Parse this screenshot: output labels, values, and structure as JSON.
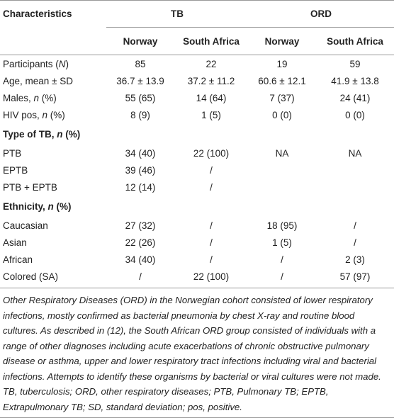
{
  "table": {
    "header": {
      "label": "Characteristics",
      "groups": [
        "TB",
        "ORD"
      ],
      "columns": [
        "Norway",
        "South Africa",
        "Norway",
        "South Africa"
      ]
    },
    "rows": [
      {
        "label": [
          "Participants (",
          "N",
          ")"
        ],
        "cells": [
          "85",
          "22",
          "19",
          "59"
        ]
      },
      {
        "label": [
          "Age, mean ± SD"
        ],
        "cells": [
          "36.7 ± 13.9",
          "37.2 ± 11.2",
          "60.6 ± 12.1",
          "41.9 ± 13.8"
        ]
      },
      {
        "label": [
          "Males, ",
          "n",
          " (%)"
        ],
        "cells": [
          "55 (65)",
          "14 (64)",
          "7 (37)",
          "24 (41)"
        ]
      },
      {
        "label": [
          "HIV pos, ",
          "n",
          " (%)"
        ],
        "cells": [
          "8 (9)",
          "1 (5)",
          "0 (0)",
          "0 (0)"
        ]
      },
      {
        "label": [
          "Type of TB, ",
          "n",
          " (%)"
        ]
      },
      {
        "label": [
          "PTB"
        ],
        "cells": [
          "34 (40)",
          "22 (100)",
          "NA",
          "NA"
        ]
      },
      {
        "label": [
          "EPTB"
        ],
        "cells": [
          "39 (46)",
          "/"
        ]
      },
      {
        "label": [
          "PTB + EPTB"
        ],
        "cells": [
          "12 (14)",
          "/"
        ]
      },
      {
        "label": [
          "Ethnicity, ",
          "n",
          " (%)"
        ]
      },
      {
        "label": [
          "Caucasian"
        ],
        "cells": [
          "27 (32)",
          "/",
          "18 (95)",
          "/"
        ]
      },
      {
        "label": [
          "Asian"
        ],
        "cells": [
          "22 (26)",
          "/",
          "1 (5)",
          "/"
        ]
      },
      {
        "label": [
          "African"
        ],
        "cells": [
          "34 (40)",
          "/",
          "/",
          "2 (3)"
        ]
      },
      {
        "label": [
          "Colored (SA)"
        ],
        "cells": [
          "/",
          "22 (100)",
          "/",
          "57 (97)"
        ]
      }
    ]
  },
  "footnote": "Other Respiratory Diseases (ORD) in the Norwegian cohort consisted of lower respiratory infections, mostly confirmed as bacterial pneumonia by chest X-ray and routine blood cultures. As described in (12), the South African ORD group consisted of individuals with a range of other diagnoses including acute exacerbations of chronic obstructive pulmonary disease or asthma, upper and lower respiratory tract infections including viral and bacterial infections. Attempts to identify these organisms by bacterial or viral cultures were not made. TB, tuberculosis; ORD, other respiratory diseases; PTB, Pulmonary TB; EPTB, Extrapulmonary TB; SD, standard deviation; pos, positive."
}
